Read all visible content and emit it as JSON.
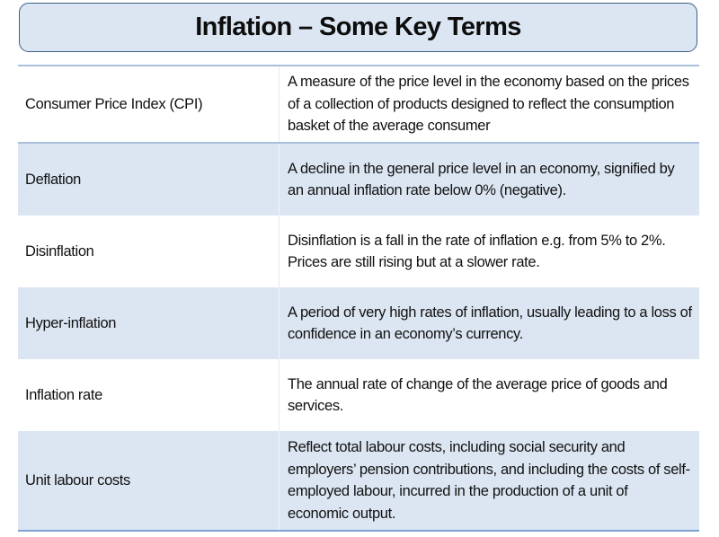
{
  "title": "Inflation – Some Key Terms",
  "colors": {
    "header_fill": "#dce6f2",
    "header_border": "#3e5f86",
    "row_shade": "#dce6f2",
    "rule": "#7fa3d1"
  },
  "terms": [
    {
      "term": "Consumer Price Index (CPI)",
      "definition": "A measure of the price level in the economy based on the prices of a collection of products designed to reflect the consumption basket of the average consumer"
    },
    {
      "term": "Deflation",
      "definition": "A decline in the general price level in an economy, signified by an annual inflation rate below 0% (negative)."
    },
    {
      "term": "Disinflation",
      "definition": "Disinflation is a fall in the rate of inflation e.g. from 5% to 2%. Prices are still rising but at a slower rate."
    },
    {
      "term": "Hyper-inflation",
      "definition": "A period of very high rates of inflation, usually leading to a loss of confidence in an economy’s currency."
    },
    {
      "term": "Inflation rate",
      "definition": "The annual rate of change of the average price of goods and services."
    },
    {
      "term": "Unit labour costs",
      "definition": "Reflect total labour costs, including social security and employers’ pension contributions, and including the costs of self-employed labour, incurred in the production of a unit of economic output."
    }
  ]
}
